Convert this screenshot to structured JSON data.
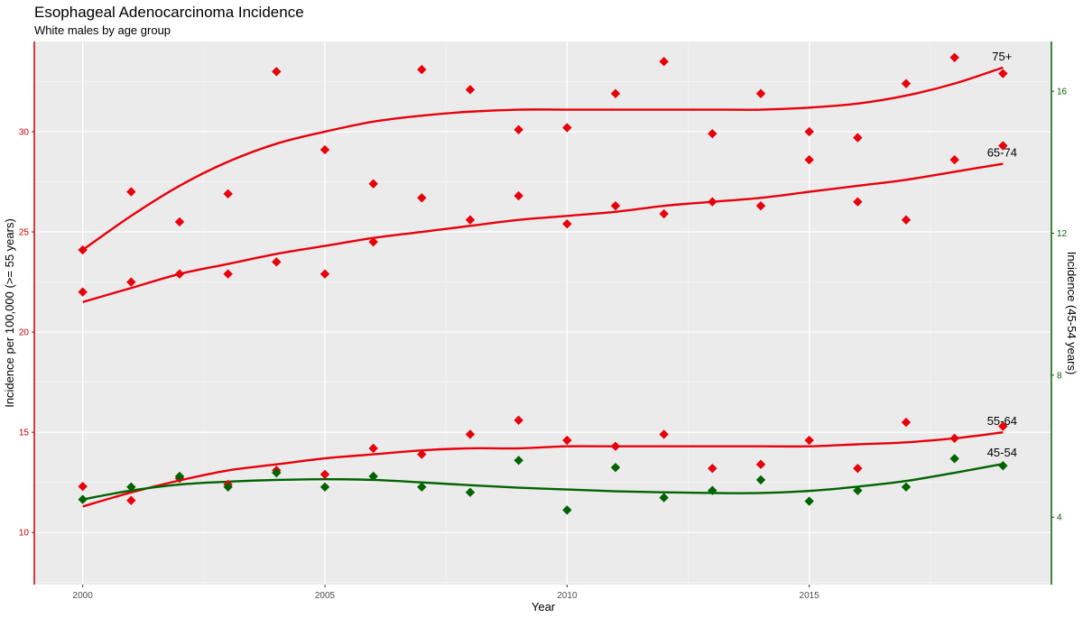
{
  "chart_data": {
    "type": "scatter",
    "title": "Esophageal Adenocarcinoma Incidence",
    "subtitle": "White males by age group",
    "xlabel": "Year",
    "ylabel_left": "Incidence per 100,000 (>= 55 years)",
    "ylabel_right": "Incidence (45-54 years)",
    "x_ticks": [
      2000,
      2005,
      2010,
      2015
    ],
    "xlim": [
      1999,
      2020
    ],
    "y_left_ticks": [
      10,
      15,
      20,
      25,
      30
    ],
    "ylim_left": [
      7.4,
      34.5
    ],
    "y_right_ticks": [
      4,
      8,
      12,
      16
    ],
    "ylim_right": [
      2.1,
      17.4
    ],
    "grid": true,
    "colors": {
      "panel_background": "#ebebeb",
      "grid_major": "#ffffff",
      "older_series": "#e8000b",
      "younger_series": "#006400",
      "left_axis": "#cc0000",
      "right_axis": "#006400",
      "tick_label_default": "#4d4d4d"
    },
    "series": [
      {
        "name": "75+",
        "axis": "left",
        "color": "#e8000b",
        "x": [
          2000,
          2001,
          2002,
          2003,
          2004,
          2005,
          2006,
          2007,
          2008,
          2009,
          2010,
          2011,
          2012,
          2013,
          2014,
          2015,
          2016,
          2017,
          2018,
          2019
        ],
        "values": [
          24.1,
          27.0,
          25.5,
          26.9,
          33.0,
          29.1,
          27.4,
          33.1,
          32.1,
          30.1,
          30.2,
          31.9,
          33.5,
          29.9,
          31.9,
          30.0,
          29.7,
          32.4,
          33.7,
          32.9
        ],
        "trend": [
          24.1,
          25.8,
          27.3,
          28.5,
          29.4,
          30.0,
          30.5,
          30.8,
          31.0,
          31.1,
          31.1,
          31.1,
          31.1,
          31.1,
          31.1,
          31.2,
          31.4,
          31.8,
          32.4,
          33.2
        ]
      },
      {
        "name": "65-74",
        "axis": "left",
        "color": "#e8000b",
        "x": [
          2000,
          2001,
          2002,
          2003,
          2004,
          2005,
          2006,
          2007,
          2008,
          2009,
          2010,
          2011,
          2012,
          2013,
          2014,
          2015,
          2016,
          2017,
          2018,
          2019
        ],
        "values": [
          22.0,
          22.5,
          22.9,
          22.9,
          23.5,
          22.9,
          24.5,
          26.7,
          25.6,
          26.8,
          25.4,
          26.3,
          25.9,
          26.5,
          26.3,
          28.6,
          26.5,
          25.6,
          28.6,
          29.3
        ],
        "trend": [
          21.5,
          22.2,
          22.9,
          23.4,
          23.9,
          24.3,
          24.7,
          25.0,
          25.3,
          25.6,
          25.8,
          26.0,
          26.3,
          26.5,
          26.7,
          27.0,
          27.3,
          27.6,
          28.0,
          28.4
        ]
      },
      {
        "name": "55-64",
        "axis": "left",
        "color": "#e8000b",
        "x": [
          2000,
          2001,
          2002,
          2003,
          2004,
          2005,
          2006,
          2007,
          2008,
          2009,
          2010,
          2011,
          2012,
          2013,
          2014,
          2015,
          2016,
          2017,
          2018,
          2019
        ],
        "values": [
          12.3,
          11.6,
          12.7,
          12.4,
          13.1,
          12.9,
          14.2,
          13.9,
          14.9,
          15.6,
          14.6,
          14.3,
          14.9,
          13.2,
          13.4,
          14.6,
          13.2,
          15.5,
          14.7,
          15.3
        ],
        "trend": [
          11.3,
          12.0,
          12.6,
          13.1,
          13.4,
          13.7,
          13.9,
          14.1,
          14.2,
          14.2,
          14.3,
          14.3,
          14.3,
          14.3,
          14.3,
          14.3,
          14.4,
          14.5,
          14.7,
          15.0
        ]
      },
      {
        "name": "45-54",
        "axis": "right",
        "color": "#006400",
        "x": [
          2000,
          2001,
          2002,
          2003,
          2004,
          2005,
          2006,
          2007,
          2008,
          2009,
          2010,
          2011,
          2012,
          2013,
          2014,
          2015,
          2016,
          2017,
          2018,
          2019
        ],
        "values": [
          4.5,
          4.85,
          5.15,
          4.85,
          5.25,
          4.85,
          5.15,
          4.85,
          4.7,
          5.6,
          4.2,
          5.4,
          4.55,
          4.75,
          5.05,
          4.45,
          4.75,
          4.85,
          5.65,
          5.45
        ],
        "trend": [
          4.5,
          4.75,
          4.92,
          5.0,
          5.05,
          5.07,
          5.05,
          4.98,
          4.9,
          4.83,
          4.78,
          4.73,
          4.7,
          4.68,
          4.68,
          4.74,
          4.86,
          5.02,
          5.25,
          5.5
        ]
      }
    ]
  }
}
